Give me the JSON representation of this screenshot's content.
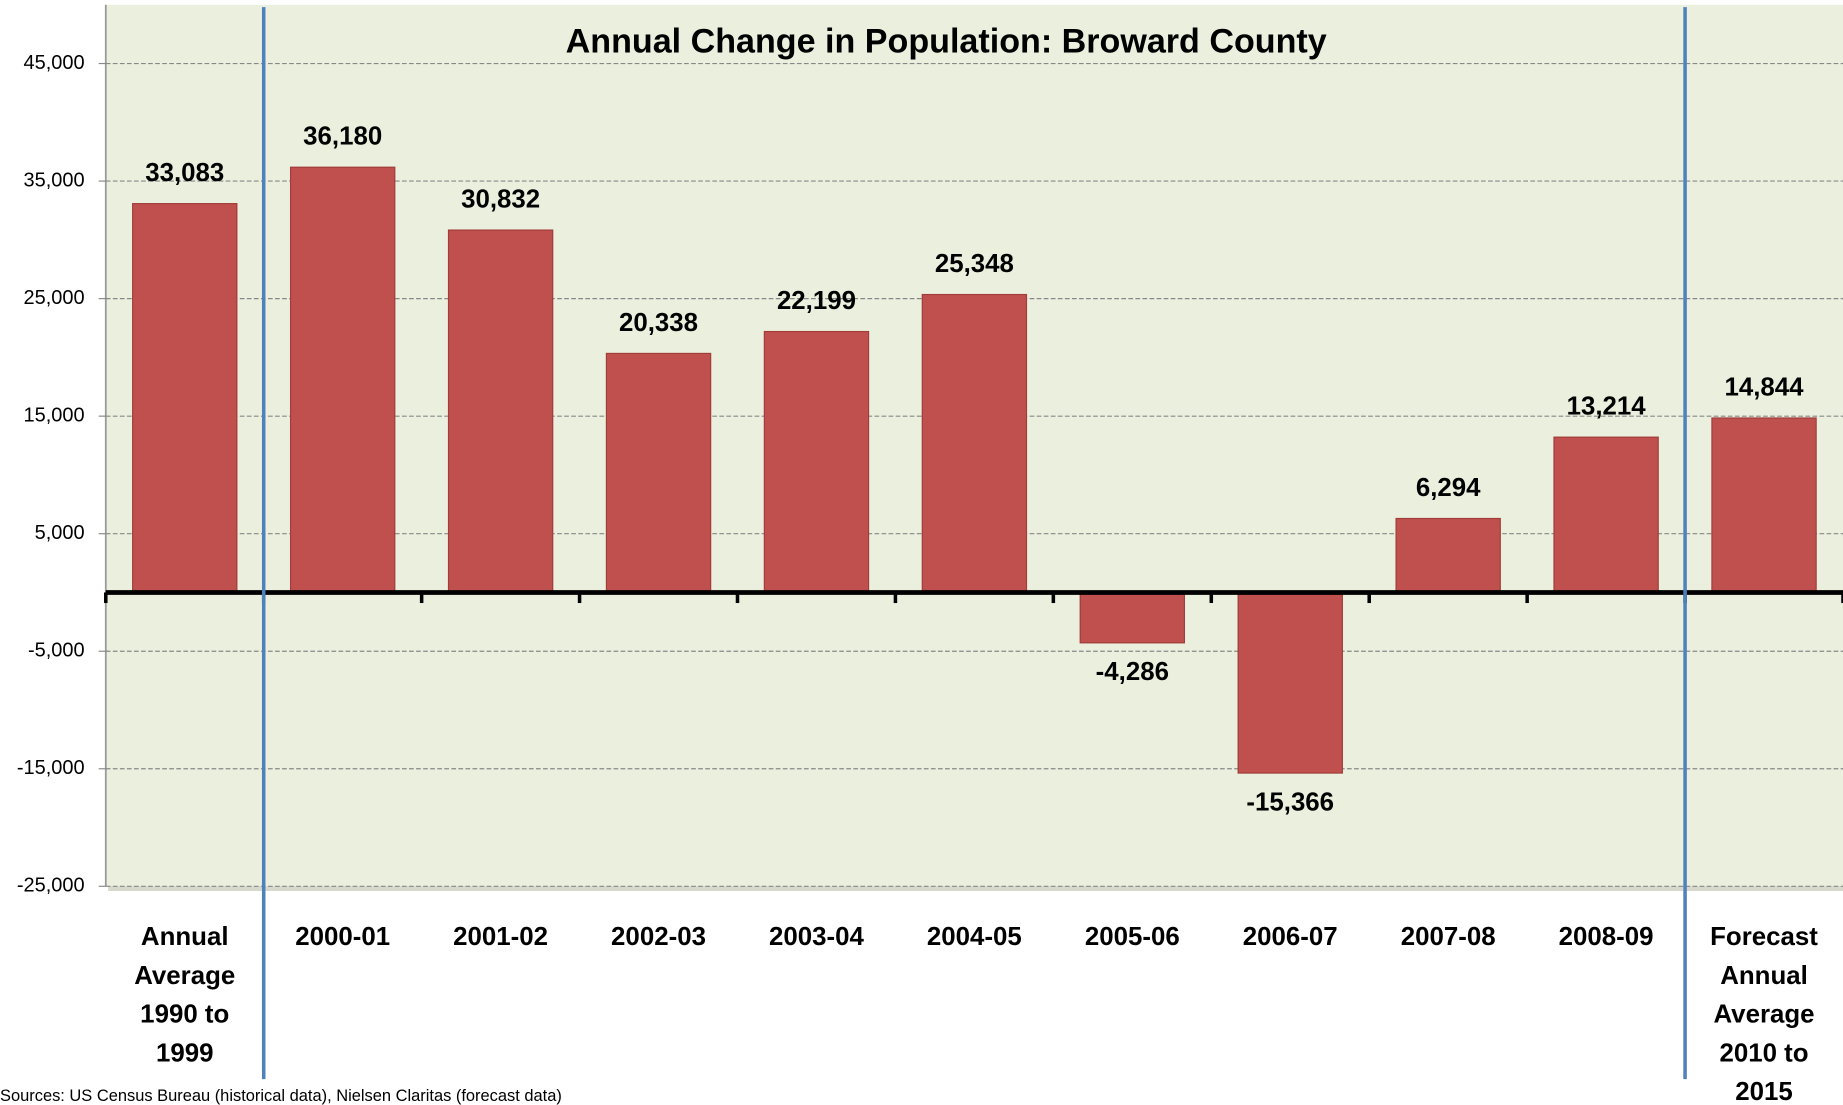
{
  "chart_data": {
    "type": "bar",
    "title": "Annual Change in Population: Broward County",
    "categories": [
      "Annual Average 1990 to 1999",
      "2000-01",
      "2001-02",
      "2002-03",
      "2003-04",
      "2004-05",
      "2005-06",
      "2006-07",
      "2007-08",
      "2008-09",
      "Forecast Annual Average 2010 to 2015"
    ],
    "values": [
      33083,
      36180,
      30832,
      20338,
      22199,
      25348,
      -4286,
      -15366,
      6294,
      13214,
      14844
    ],
    "value_labels": [
      "33,083",
      "36,180",
      "30,832",
      "20,338",
      "22,199",
      "25,348",
      "-4,286",
      "-15,366",
      "6,294",
      "13,214",
      "14,844"
    ],
    "color": "#c0504d",
    "ylim": [
      -25000,
      50000
    ],
    "yticks": [
      {
        "value": -25000,
        "label": "-25,000"
      },
      {
        "value": -15000,
        "label": "-15,000"
      },
      {
        "value": -5000,
        "label": "-5,000"
      },
      {
        "value": 5000,
        "label": "5,000"
      },
      {
        "value": 15000,
        "label": "15,000"
      },
      {
        "value": 25000,
        "label": "25,000"
      },
      {
        "value": 35000,
        "label": "35,000"
      },
      {
        "value": 45000,
        "label": "45,000"
      }
    ],
    "grid": true,
    "source": "Sources: US Census Bureau (historical data), Nielsen Claritas (forecast data)"
  }
}
